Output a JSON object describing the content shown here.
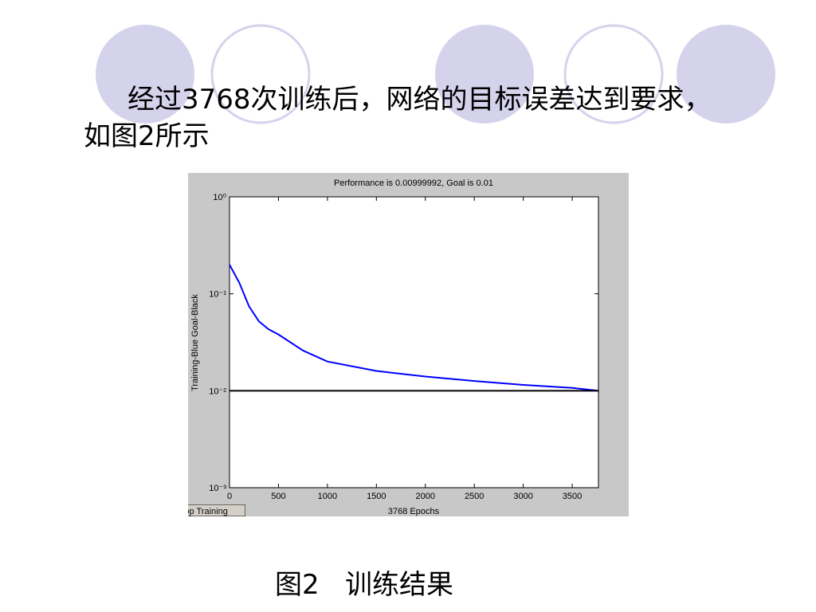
{
  "slide": {
    "body": "经过3768次训练后，网络的目标误差达到要求，如图2所示",
    "caption": "图2   训练结果",
    "button": "Stop Training"
  },
  "chart_data": {
    "type": "line",
    "title": "Performance is 0.00999992, Goal is 0.01",
    "x_label": "3768 Epochs",
    "y_label": "Training-Blue  Goal-Black",
    "x": [
      0,
      100,
      200,
      300,
      400,
      500,
      750,
      1000,
      1500,
      2000,
      2500,
      3000,
      3500,
      3768
    ],
    "series": [
      {
        "color": "#0000ff",
        "values": [
          0.2,
          0.13,
          0.074,
          0.052,
          0.043,
          0.038,
          0.026,
          0.02,
          0.016,
          0.014,
          0.0126,
          0.0115,
          0.0107,
          0.00999992
        ]
      },
      {
        "color": "#000000",
        "values": [
          0.01,
          0.01,
          0.01,
          0.01,
          0.01,
          0.01,
          0.01,
          0.01,
          0.01,
          0.01,
          0.01,
          0.01,
          0.01,
          0.01
        ]
      }
    ],
    "xlim": [
      0,
      3768
    ],
    "xticks": [
      0,
      500,
      1000,
      1500,
      2000,
      2500,
      3000,
      3500
    ],
    "ylim": [
      0.001,
      1
    ],
    "yscale": "log",
    "yticks": [
      {
        "value": 1,
        "label": "10⁰"
      },
      {
        "value": 0.1,
        "label": "10⁻¹"
      },
      {
        "value": 0.01,
        "label": "10⁻²"
      },
      {
        "value": 0.001,
        "label": "10⁻³"
      }
    ],
    "grid": false
  }
}
